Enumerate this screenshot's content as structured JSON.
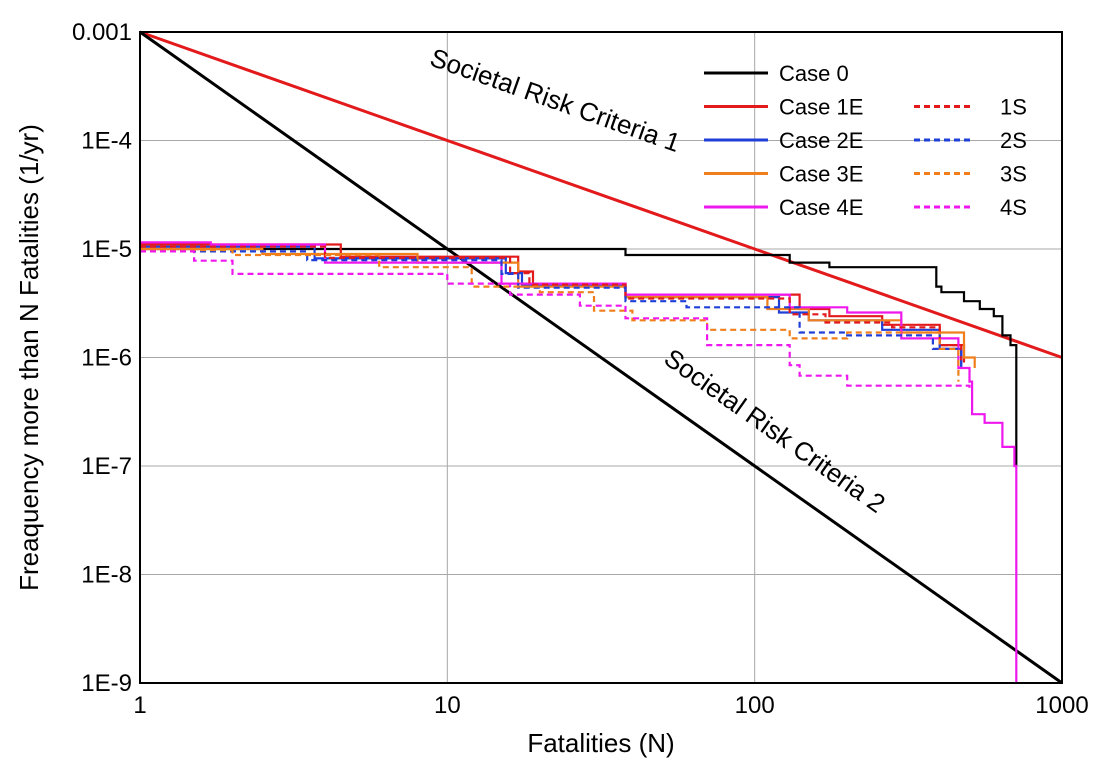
{
  "chart_data": {
    "type": "line",
    "xlabel": "Fatalities (N)",
    "ylabel": "Freaquency more than N Fatalities (1/yr)",
    "x_scale": "log",
    "y_scale": "log",
    "xlim": [
      1,
      1000
    ],
    "ylim": [
      1e-09,
      0.001
    ],
    "grid": true,
    "legend_position": "top-right",
    "x_ticks": [
      {
        "value": 1,
        "label": "1"
      },
      {
        "value": 10,
        "label": "10"
      },
      {
        "value": 100,
        "label": "100"
      },
      {
        "value": 1000,
        "label": "1000"
      }
    ],
    "y_ticks": [
      {
        "value": 0.001,
        "label": "0.001"
      },
      {
        "value": 0.0001,
        "label": "1E-4"
      },
      {
        "value": 1e-05,
        "label": "1E-5"
      },
      {
        "value": 1e-06,
        "label": "1E-6"
      },
      {
        "value": 1e-07,
        "label": "1E-7"
      },
      {
        "value": 1e-08,
        "label": "1E-8"
      },
      {
        "value": 1e-09,
        "label": "1E-9"
      }
    ],
    "criteria": [
      {
        "label": "Societal Risk Criteria 1",
        "color": "#e31a1c",
        "x": [
          1,
          1000
        ],
        "y": [
          0.001,
          1e-06
        ]
      },
      {
        "label": "Societal Risk Criteria 2",
        "color": "#000000",
        "x": [
          1,
          1000
        ],
        "y": [
          0.001,
          1e-09
        ]
      }
    ],
    "series": [
      {
        "name": "Case 0",
        "color": "#000000",
        "dash": false,
        "x": [
          1,
          38,
          38,
          130,
          130,
          175,
          175,
          390,
          390,
          405,
          405,
          480,
          480,
          540,
          540,
          600,
          600,
          640,
          640,
          680,
          680,
          710,
          710
        ],
        "y": [
          1e-05,
          1e-05,
          8.8e-06,
          8.8e-06,
          7.5e-06,
          7.5e-06,
          6.8e-06,
          6.8e-06,
          4.5e-06,
          4.5e-06,
          4e-06,
          4e-06,
          3.3e-06,
          3.3e-06,
          2.8e-06,
          2.8e-06,
          2.4e-06,
          2.4e-06,
          1.6e-06,
          1.6e-06,
          1.3e-06,
          1.3e-06,
          1e-07
        ]
      },
      {
        "name": "Case 1E",
        "color": "#e31a1c",
        "dash": false,
        "x": [
          1,
          4.5,
          4.5,
          17,
          17,
          19,
          19,
          38,
          38,
          140,
          140,
          175,
          175,
          260,
          260,
          400,
          400,
          480,
          480
        ],
        "y": [
          1.1e-05,
          1.1e-05,
          8.5e-06,
          8.5e-06,
          6.2e-06,
          6.2e-06,
          4.8e-06,
          4.8e-06,
          3.8e-06,
          3.8e-06,
          2.8e-06,
          2.8e-06,
          2.4e-06,
          2.4e-06,
          2e-06,
          2e-06,
          1.3e-06,
          1.3e-06,
          9e-07
        ]
      },
      {
        "name": "Case 2E",
        "color": "#1f3fd9",
        "dash": false,
        "x": [
          1,
          3.7,
          3.7,
          15.5,
          15.5,
          17.5,
          17.5,
          38,
          38,
          120,
          120,
          150,
          150,
          260,
          260,
          400,
          400,
          470,
          470
        ],
        "y": [
          1.05e-05,
          1.05e-05,
          8.2e-06,
          8.2e-06,
          6e-06,
          6e-06,
          4.6e-06,
          4.6e-06,
          3.6e-06,
          3.6e-06,
          2.6e-06,
          2.6e-06,
          2.2e-06,
          2.2e-06,
          1.8e-06,
          1.8e-06,
          1.2e-06,
          1.2e-06,
          8e-07
        ]
      },
      {
        "name": "Case 3E",
        "color": "#f07f1b",
        "dash": false,
        "x": [
          1,
          2.5,
          2.5,
          8,
          8,
          17,
          17,
          38,
          38,
          110,
          110,
          150,
          150,
          300,
          300,
          480,
          480,
          520,
          520
        ],
        "y": [
          1e-05,
          1e-05,
          9e-06,
          9e-06,
          7.5e-06,
          7.5e-06,
          4.5e-06,
          4.5e-06,
          3.6e-06,
          3.6e-06,
          2.8e-06,
          2.8e-06,
          2.2e-06,
          2.2e-06,
          1.7e-06,
          1.7e-06,
          1e-06,
          1e-06,
          8e-07
        ]
      },
      {
        "name": "Case 4E",
        "color": "#ee18ee",
        "dash": false,
        "x": [
          1,
          1.7,
          1.7,
          4,
          4,
          15,
          15,
          38,
          38,
          130,
          130,
          200,
          200,
          300,
          300,
          460,
          460,
          500,
          500,
          510,
          510,
          560,
          560,
          640,
          640,
          700,
          700,
          710,
          710
        ],
        "y": [
          1.15e-05,
          1.15e-05,
          1.1e-05,
          1.1e-05,
          7.5e-06,
          7.5e-06,
          4.8e-06,
          4.8e-06,
          3.8e-06,
          3.8e-06,
          2.9e-06,
          2.9e-06,
          2.6e-06,
          2.6e-06,
          1.5e-06,
          1.5e-06,
          8e-07,
          8e-07,
          6e-07,
          6e-07,
          3e-07,
          3e-07,
          2.5e-07,
          2.5e-07,
          1.5e-07,
          1.5e-07,
          1e-07,
          1e-07,
          1e-09
        ]
      },
      {
        "name": "1S",
        "color": "#e31a1c",
        "dash": true,
        "x": [
          1,
          4,
          4,
          16,
          16,
          18.5,
          18.5,
          38,
          38,
          130,
          130,
          170,
          170,
          280,
          280,
          400,
          400,
          470,
          470
        ],
        "y": [
          1.05e-05,
          1.05e-05,
          8.3e-06,
          8.3e-06,
          6e-06,
          6e-06,
          4.7e-06,
          4.7e-06,
          3.5e-06,
          3.5e-06,
          2.5e-06,
          2.5e-06,
          2.1e-06,
          2.1e-06,
          1.9e-06,
          1.9e-06,
          1.3e-06,
          1.3e-06,
          9e-07
        ]
      },
      {
        "name": "2S",
        "color": "#1f3fd9",
        "dash": true,
        "x": [
          1,
          3.5,
          3.5,
          15,
          15,
          17,
          17,
          38,
          38,
          60,
          60,
          140,
          140,
          200,
          200,
          380,
          380,
          470,
          470
        ],
        "y": [
          9.5e-06,
          9.5e-06,
          7.9e-06,
          7.9e-06,
          5.9e-06,
          5.9e-06,
          4.4e-06,
          4.4e-06,
          3.3e-06,
          3.3e-06,
          2.9e-06,
          2.9e-06,
          1.7e-06,
          1.7e-06,
          1.6e-06,
          1.6e-06,
          1.2e-06,
          1.2e-06,
          8e-07
        ]
      },
      {
        "name": "3S",
        "color": "#f07f1b",
        "dash": true,
        "x": [
          1,
          2,
          2,
          6,
          6,
          12,
          12,
          20,
          20,
          30,
          30,
          40,
          40,
          70,
          70,
          130,
          130,
          200,
          200,
          400,
          400,
          460,
          460
        ],
        "y": [
          9.8e-06,
          9.8e-06,
          8.8e-06,
          8.8e-06,
          6.8e-06,
          6.8e-06,
          4.5e-06,
          4.5e-06,
          4e-06,
          4e-06,
          2.7e-06,
          2.7e-06,
          2.2e-06,
          2.2e-06,
          1.8e-06,
          1.8e-06,
          1.5e-06,
          1.5e-06,
          1.7e-06,
          1.7e-06,
          1.2e-06,
          1.2e-06,
          6e-07
        ]
      },
      {
        "name": "4S",
        "color": "#ee18ee",
        "dash": true,
        "x": [
          1,
          1.5,
          1.5,
          2,
          2,
          10,
          10,
          16,
          16,
          27,
          27,
          38,
          38,
          70,
          70,
          130,
          130,
          140,
          140,
          200,
          200,
          400,
          400,
          500,
          500
        ],
        "y": [
          9.5e-06,
          9.5e-06,
          7.8e-06,
          7.8e-06,
          5.9e-06,
          5.9e-06,
          4.8e-06,
          4.8e-06,
          3.8e-06,
          3.8e-06,
          3e-06,
          3e-06,
          2.3e-06,
          2.3e-06,
          1.3e-06,
          1.3e-06,
          8.5e-07,
          8.5e-07,
          6.8e-07,
          6.8e-07,
          5.5e-07,
          5.5e-07,
          5.5e-07,
          5.5e-07,
          5e-07
        ]
      }
    ]
  }
}
